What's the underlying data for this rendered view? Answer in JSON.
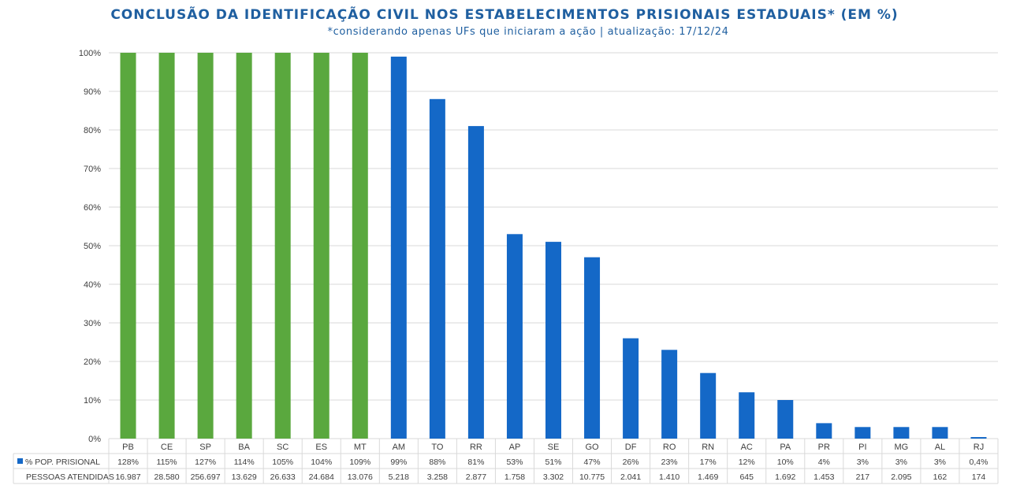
{
  "chart_data": {
    "type": "bar",
    "title": "CONCLUSÃO DA IDENTIFICAÇÃO CIVIL NOS ESTABELECIMENTOS PRISIONAIS ESTADUAIS* (EM %)",
    "subtitle": "*considerando apenas UFs que iniciaram a ação | atualização: 17/12/24",
    "categories": [
      "PB",
      "CE",
      "SP",
      "BA",
      "SC",
      "ES",
      "MT",
      "AM",
      "TO",
      "RR",
      "AP",
      "SE",
      "GO",
      "DF",
      "RO",
      "RN",
      "AC",
      "PA",
      "PR",
      "PI",
      "MG",
      "AL",
      "RJ"
    ],
    "ylim": [
      0,
      100
    ],
    "yticks": [
      "0%",
      "10%",
      "20%",
      "30%",
      "40%",
      "50%",
      "60%",
      "70%",
      "80%",
      "90%",
      "100%"
    ],
    "ytick_values": [
      0,
      10,
      20,
      30,
      40,
      50,
      60,
      70,
      80,
      90,
      100
    ],
    "grid": true,
    "series": [
      {
        "name": "% POP. PRISIONAL",
        "values": [
          100,
          100,
          100,
          100,
          100,
          100,
          100,
          99,
          88,
          81,
          53,
          51,
          47,
          26,
          23,
          17,
          12,
          10,
          4,
          3,
          3,
          3,
          0.4
        ],
        "table_labels": [
          "128%",
          "115%",
          "127%",
          "114%",
          "105%",
          "104%",
          "109%",
          "99%",
          "88%",
          "81%",
          "53%",
          "51%",
          "47%",
          "26%",
          "23%",
          "17%",
          "12%",
          "10%",
          "4%",
          "3%",
          "3%",
          "3%",
          "0,4%"
        ]
      }
    ],
    "table_rows": [
      {
        "name": "PESSOAS ATENDIDAS",
        "values": [
          "16.987",
          "28.580",
          "256.697",
          "13.629",
          "26.633",
          "24.684",
          "13.076",
          "5.218",
          "3.258",
          "2.877",
          "1.758",
          "3.302",
          "10.775",
          "2.041",
          "1.410",
          "1.469",
          "645",
          "1.692",
          "1.453",
          "217",
          "2.095",
          "162",
          "174"
        ]
      }
    ],
    "colors": {
      "complete": "#5aa83e",
      "partial": "#1468c7",
      "grid": "#d9d9d9",
      "title": "#1f5fa0"
    }
  }
}
